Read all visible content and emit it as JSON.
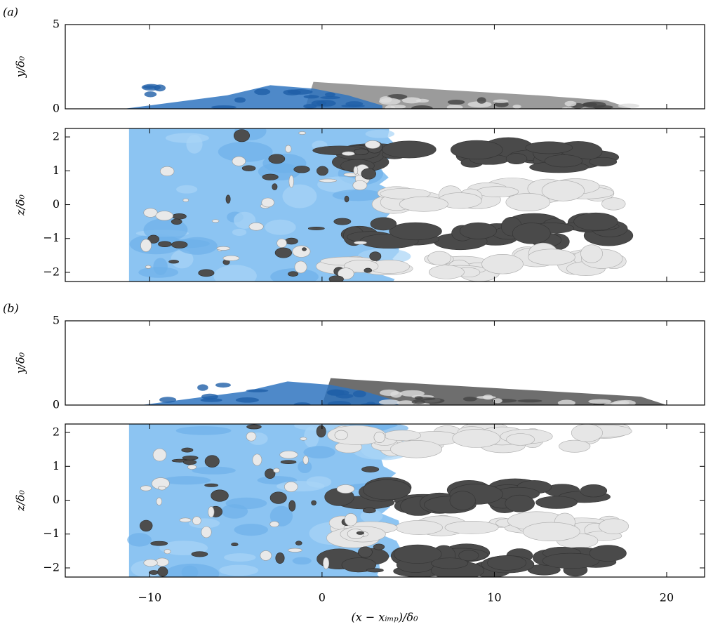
{
  "figure": {
    "xlabel": "(x − xᵢₘₚ)/δ₀",
    "xlim": [
      -14.9,
      22.2
    ],
    "xticks": [
      {
        "value": -10,
        "label": "−10"
      },
      0,
      10,
      20
    ],
    "panels": [
      {
        "label": "(a)",
        "rows": [
          {
            "ylabel": "y/δ₀",
            "ylim": [
              0,
              5
            ],
            "yticks": [
              0,
              5
            ]
          },
          {
            "ylabel": "z/δ₀",
            "ylim": [
              -2.27,
              2.25
            ],
            "yticks": [
              {
                "value": -2,
                "label": "−2"
              },
              {
                "value": -1,
                "label": "−1"
              },
              0,
              1,
              2
            ]
          }
        ]
      },
      {
        "label": "(b)",
        "rows": [
          {
            "ylabel": "y/δ₀",
            "ylim": [
              0,
              5
            ],
            "yticks": [
              0,
              5
            ]
          },
          {
            "ylabel": "z/δ₀",
            "ylim": [
              -2.27,
              2.25
            ],
            "yticks": [
              {
                "value": -2,
                "label": "−2"
              },
              {
                "value": -1,
                "label": "−1"
              },
              0,
              1,
              2
            ]
          }
        ]
      }
    ]
  }
}
